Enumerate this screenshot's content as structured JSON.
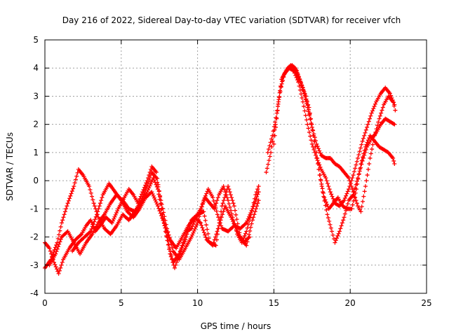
{
  "chart_data": {
    "type": "scatter",
    "title": "Day 216 of 2022, Sidereal Day-to-day VTEC variation (SDTVAR) for receiver vfch",
    "xlabel": "GPS time / hours",
    "ylabel": "SDTVAR / TECUs",
    "xlim": [
      0,
      25
    ],
    "ylim": [
      -4,
      5
    ],
    "x_ticks": [
      0,
      5,
      10,
      15,
      20,
      25
    ],
    "y_ticks": [
      -4,
      -3,
      -2,
      -1,
      0,
      1,
      2,
      3,
      4,
      5
    ],
    "grid": true,
    "legend": "none",
    "marker": "+",
    "series": [
      {
        "name": "sdtvar_a",
        "color": "#ff0000",
        "points": [
          [
            0.0,
            -2.2
          ],
          [
            0.3,
            -2.4
          ],
          [
            0.6,
            -2.9
          ],
          [
            0.9,
            -3.3
          ],
          [
            1.2,
            -2.8
          ],
          [
            1.6,
            -2.4
          ],
          [
            2.0,
            -2.1
          ],
          [
            2.4,
            -1.9
          ],
          [
            2.7,
            -1.6
          ],
          [
            3.0,
            -1.4
          ],
          [
            3.3,
            -1.8
          ],
          [
            3.6,
            -1.6
          ],
          [
            4.0,
            -1.3
          ],
          [
            4.4,
            -1.5
          ],
          [
            4.8,
            -1.0
          ],
          [
            5.2,
            -0.6
          ],
          [
            5.5,
            -0.3
          ],
          [
            5.8,
            -0.5
          ],
          [
            6.1,
            -0.8
          ],
          [
            6.4,
            -0.4
          ],
          [
            6.7,
            0.0
          ],
          [
            7.0,
            0.5
          ],
          [
            7.3,
            0.3
          ],
          [
            7.6,
            -0.8
          ],
          [
            7.9,
            -1.8
          ],
          [
            8.2,
            -2.6
          ],
          [
            8.5,
            -3.1
          ],
          [
            8.7,
            -2.8
          ],
          [
            9.0,
            -2.3
          ],
          [
            9.3,
            -1.8
          ],
          [
            9.6,
            -1.7
          ],
          [
            9.9,
            -1.3
          ],
          [
            10.2,
            -1.0
          ],
          [
            10.5,
            -0.6
          ],
          [
            10.8,
            -0.8
          ],
          [
            11.1,
            -1.0
          ],
          [
            11.4,
            -0.5
          ],
          [
            11.7,
            -0.2
          ],
          [
            12.0,
            -0.7
          ],
          [
            12.3,
            -1.3
          ],
          [
            12.6,
            -1.9
          ],
          [
            12.9,
            -2.2
          ],
          [
            13.2,
            -1.8
          ],
          [
            13.5,
            -1.2
          ],
          [
            13.8,
            -0.5
          ],
          [
            14.0,
            -0.2
          ]
        ]
      },
      {
        "name": "sdtvar_b",
        "color": "#ff0000",
        "points": [
          [
            0.0,
            -3.1
          ],
          [
            0.4,
            -2.8
          ],
          [
            0.8,
            -2.2
          ],
          [
            1.1,
            -1.5
          ],
          [
            1.5,
            -0.8
          ],
          [
            1.9,
            -0.2
          ],
          [
            2.2,
            0.4
          ],
          [
            2.5,
            0.2
          ],
          [
            2.9,
            -0.2
          ],
          [
            3.2,
            -0.8
          ],
          [
            3.5,
            -1.3
          ],
          [
            3.9,
            -1.7
          ],
          [
            4.3,
            -1.9
          ],
          [
            4.7,
            -1.6
          ],
          [
            5.1,
            -1.2
          ],
          [
            5.5,
            -1.4
          ],
          [
            5.9,
            -1.1
          ],
          [
            6.3,
            -0.7
          ],
          [
            6.7,
            -0.2
          ],
          [
            7.0,
            0.3
          ],
          [
            7.3,
            0.1
          ],
          [
            7.6,
            -0.7
          ],
          [
            8.0,
            -1.7
          ],
          [
            8.4,
            -2.5
          ],
          [
            8.8,
            -2.8
          ],
          [
            9.2,
            -2.4
          ],
          [
            9.6,
            -2.0
          ],
          [
            10.0,
            -1.5
          ],
          [
            10.4,
            -0.7
          ],
          [
            10.7,
            -0.3
          ],
          [
            11.0,
            -0.6
          ],
          [
            11.3,
            -1.2
          ],
          [
            11.6,
            -1.7
          ],
          [
            12.0,
            -1.8
          ],
          [
            12.4,
            -1.6
          ],
          [
            12.8,
            -1.7
          ],
          [
            13.2,
            -1.5
          ],
          [
            13.6,
            -1.0
          ],
          [
            14.0,
            -0.4
          ]
        ]
      },
      {
        "name": "sdtvar_c",
        "color": "#ff0000",
        "points": [
          [
            0.3,
            -3.0
          ],
          [
            0.7,
            -2.6
          ],
          [
            1.1,
            -2.0
          ],
          [
            1.5,
            -1.8
          ],
          [
            1.9,
            -2.2
          ],
          [
            2.3,
            -2.6
          ],
          [
            2.7,
            -2.2
          ],
          [
            3.1,
            -1.9
          ],
          [
            3.5,
            -1.5
          ],
          [
            3.9,
            -1.2
          ],
          [
            4.3,
            -0.8
          ],
          [
            4.7,
            -0.5
          ],
          [
            5.1,
            -0.7
          ],
          [
            5.5,
            -1.0
          ],
          [
            5.9,
            -1.1
          ],
          [
            6.3,
            -0.8
          ],
          [
            6.7,
            -0.4
          ],
          [
            7.1,
            0.1
          ],
          [
            7.4,
            -0.3
          ],
          [
            7.7,
            -1.2
          ],
          [
            8.0,
            -2.0
          ],
          [
            8.4,
            -2.9
          ],
          [
            8.8,
            -2.6
          ],
          [
            9.2,
            -2.1
          ],
          [
            9.6,
            -1.4
          ],
          [
            10.0,
            -1.2
          ],
          [
            10.4,
            -1.1
          ],
          [
            10.8,
            -2.2
          ],
          [
            11.2,
            -2.3
          ],
          [
            11.6,
            -0.9
          ],
          [
            12.0,
            -0.2
          ],
          [
            12.4,
            -0.9
          ],
          [
            12.8,
            -2.0
          ],
          [
            13.2,
            -2.3
          ],
          [
            13.6,
            -1.4
          ],
          [
            14.0,
            -0.7
          ]
        ]
      },
      {
        "name": "sdtvar_d",
        "color": "#ff0000",
        "points": [
          [
            1.8,
            -2.5
          ],
          [
            2.2,
            -2.2
          ],
          [
            2.6,
            -2.0
          ],
          [
            3.0,
            -1.8
          ],
          [
            3.4,
            -1.2
          ],
          [
            3.8,
            -0.5
          ],
          [
            4.2,
            -0.1
          ],
          [
            4.6,
            -0.4
          ],
          [
            5.0,
            -0.7
          ],
          [
            5.4,
            -1.1
          ],
          [
            5.8,
            -1.3
          ],
          [
            6.2,
            -1.0
          ],
          [
            6.6,
            -0.6
          ],
          [
            7.0,
            -0.4
          ],
          [
            7.4,
            -0.9
          ],
          [
            7.8,
            -1.5
          ],
          [
            8.2,
            -2.1
          ],
          [
            8.6,
            -2.4
          ],
          [
            9.0,
            -2.0
          ],
          [
            9.4,
            -1.6
          ],
          [
            9.8,
            -1.3
          ],
          [
            10.2,
            -1.5
          ],
          [
            10.6,
            -2.1
          ],
          [
            11.0,
            -2.3
          ],
          [
            11.4,
            -1.6
          ],
          [
            11.8,
            -0.9
          ],
          [
            12.2,
            -1.3
          ],
          [
            12.6,
            -1.8
          ],
          [
            13.0,
            -2.2
          ],
          [
            13.4,
            -2.0
          ]
        ]
      },
      {
        "name": "sdtvar_e",
        "color": "#ff0000",
        "points": [
          [
            14.5,
            0.3
          ],
          [
            14.8,
            1.0
          ],
          [
            15.1,
            2.0
          ],
          [
            15.4,
            3.2
          ],
          [
            15.7,
            3.8
          ],
          [
            16.0,
            4.0
          ],
          [
            16.3,
            3.9
          ],
          [
            16.6,
            3.5
          ],
          [
            16.9,
            2.8
          ],
          [
            17.2,
            2.0
          ],
          [
            17.5,
            1.3
          ],
          [
            17.8,
            0.8
          ],
          [
            18.1,
            0.4
          ],
          [
            18.4,
            0.1
          ],
          [
            18.7,
            -0.4
          ],
          [
            19.0,
            -0.8
          ],
          [
            19.3,
            -0.9
          ],
          [
            19.6,
            -0.7
          ],
          [
            19.9,
            -0.3
          ],
          [
            20.2,
            0.2
          ],
          [
            20.5,
            0.8
          ],
          [
            20.8,
            1.4
          ],
          [
            21.1,
            1.9
          ],
          [
            21.4,
            2.4
          ],
          [
            21.7,
            2.8
          ],
          [
            22.0,
            3.1
          ],
          [
            22.3,
            3.3
          ],
          [
            22.6,
            3.1
          ],
          [
            22.9,
            2.7
          ]
        ]
      },
      {
        "name": "sdtvar_f",
        "color": "#ff0000",
        "points": [
          [
            14.6,
            1.0
          ],
          [
            14.9,
            1.6
          ],
          [
            15.2,
            2.4
          ],
          [
            15.5,
            3.6
          ],
          [
            15.8,
            3.9
          ],
          [
            16.1,
            4.1
          ],
          [
            16.4,
            4.0
          ],
          [
            16.7,
            3.6
          ],
          [
            17.0,
            3.1
          ],
          [
            17.3,
            2.6
          ],
          [
            17.6,
            1.6
          ],
          [
            17.9,
            0.6
          ],
          [
            18.2,
            -0.4
          ],
          [
            18.5,
            -1.2
          ],
          [
            18.8,
            -1.8
          ],
          [
            19.0,
            -2.2
          ],
          [
            19.3,
            -1.8
          ],
          [
            19.6,
            -1.3
          ],
          [
            19.9,
            -0.7
          ],
          [
            20.2,
            -0.5
          ],
          [
            20.5,
            0.1
          ],
          [
            20.8,
            0.7
          ],
          [
            21.1,
            1.2
          ],
          [
            21.4,
            1.5
          ],
          [
            21.7,
            1.7
          ],
          [
            22.0,
            2.0
          ],
          [
            22.3,
            2.2
          ],
          [
            22.6,
            2.1
          ],
          [
            22.9,
            2.0
          ]
        ]
      },
      {
        "name": "sdtvar_g",
        "color": "#ff0000",
        "points": [
          [
            15.0,
            1.3
          ],
          [
            15.3,
            2.8
          ],
          [
            15.6,
            3.7
          ],
          [
            15.9,
            4.0
          ],
          [
            16.2,
            4.1
          ],
          [
            16.5,
            3.9
          ],
          [
            16.8,
            3.4
          ],
          [
            17.1,
            3.0
          ],
          [
            17.4,
            2.2
          ],
          [
            17.7,
            1.2
          ],
          [
            18.0,
            0.2
          ],
          [
            18.3,
            -0.6
          ],
          [
            18.6,
            -1.0
          ],
          [
            18.9,
            -0.8
          ],
          [
            19.2,
            -0.6
          ],
          [
            19.5,
            -0.9
          ],
          [
            19.8,
            -1.0
          ],
          [
            20.1,
            -1.0
          ],
          [
            20.4,
            -0.3
          ],
          [
            20.7,
            0.6
          ],
          [
            21.0,
            1.2
          ],
          [
            21.3,
            1.6
          ],
          [
            21.6,
            1.4
          ],
          [
            21.9,
            1.2
          ],
          [
            22.2,
            1.1
          ],
          [
            22.5,
            1.0
          ],
          [
            22.8,
            0.8
          ],
          [
            22.9,
            0.6
          ]
        ]
      },
      {
        "name": "sdtvar_h",
        "color": "#ff0000",
        "points": [
          [
            16.3,
            4.0
          ],
          [
            16.6,
            3.7
          ],
          [
            16.9,
            3.3
          ],
          [
            17.2,
            2.6
          ],
          [
            17.5,
            1.9
          ],
          [
            17.8,
            1.3
          ],
          [
            18.1,
            0.9
          ],
          [
            18.4,
            0.8
          ],
          [
            18.7,
            0.8
          ],
          [
            19.0,
            0.6
          ],
          [
            19.3,
            0.5
          ],
          [
            19.6,
            0.3
          ],
          [
            19.9,
            0.1
          ],
          [
            20.2,
            -0.4
          ],
          [
            20.5,
            -0.9
          ],
          [
            20.7,
            -1.1
          ],
          [
            21.0,
            -0.2
          ],
          [
            21.3,
            0.8
          ],
          [
            21.6,
            1.6
          ],
          [
            21.9,
            2.2
          ],
          [
            22.2,
            2.7
          ],
          [
            22.5,
            3.0
          ],
          [
            22.8,
            2.8
          ],
          [
            22.95,
            2.5
          ]
        ]
      }
    ]
  }
}
